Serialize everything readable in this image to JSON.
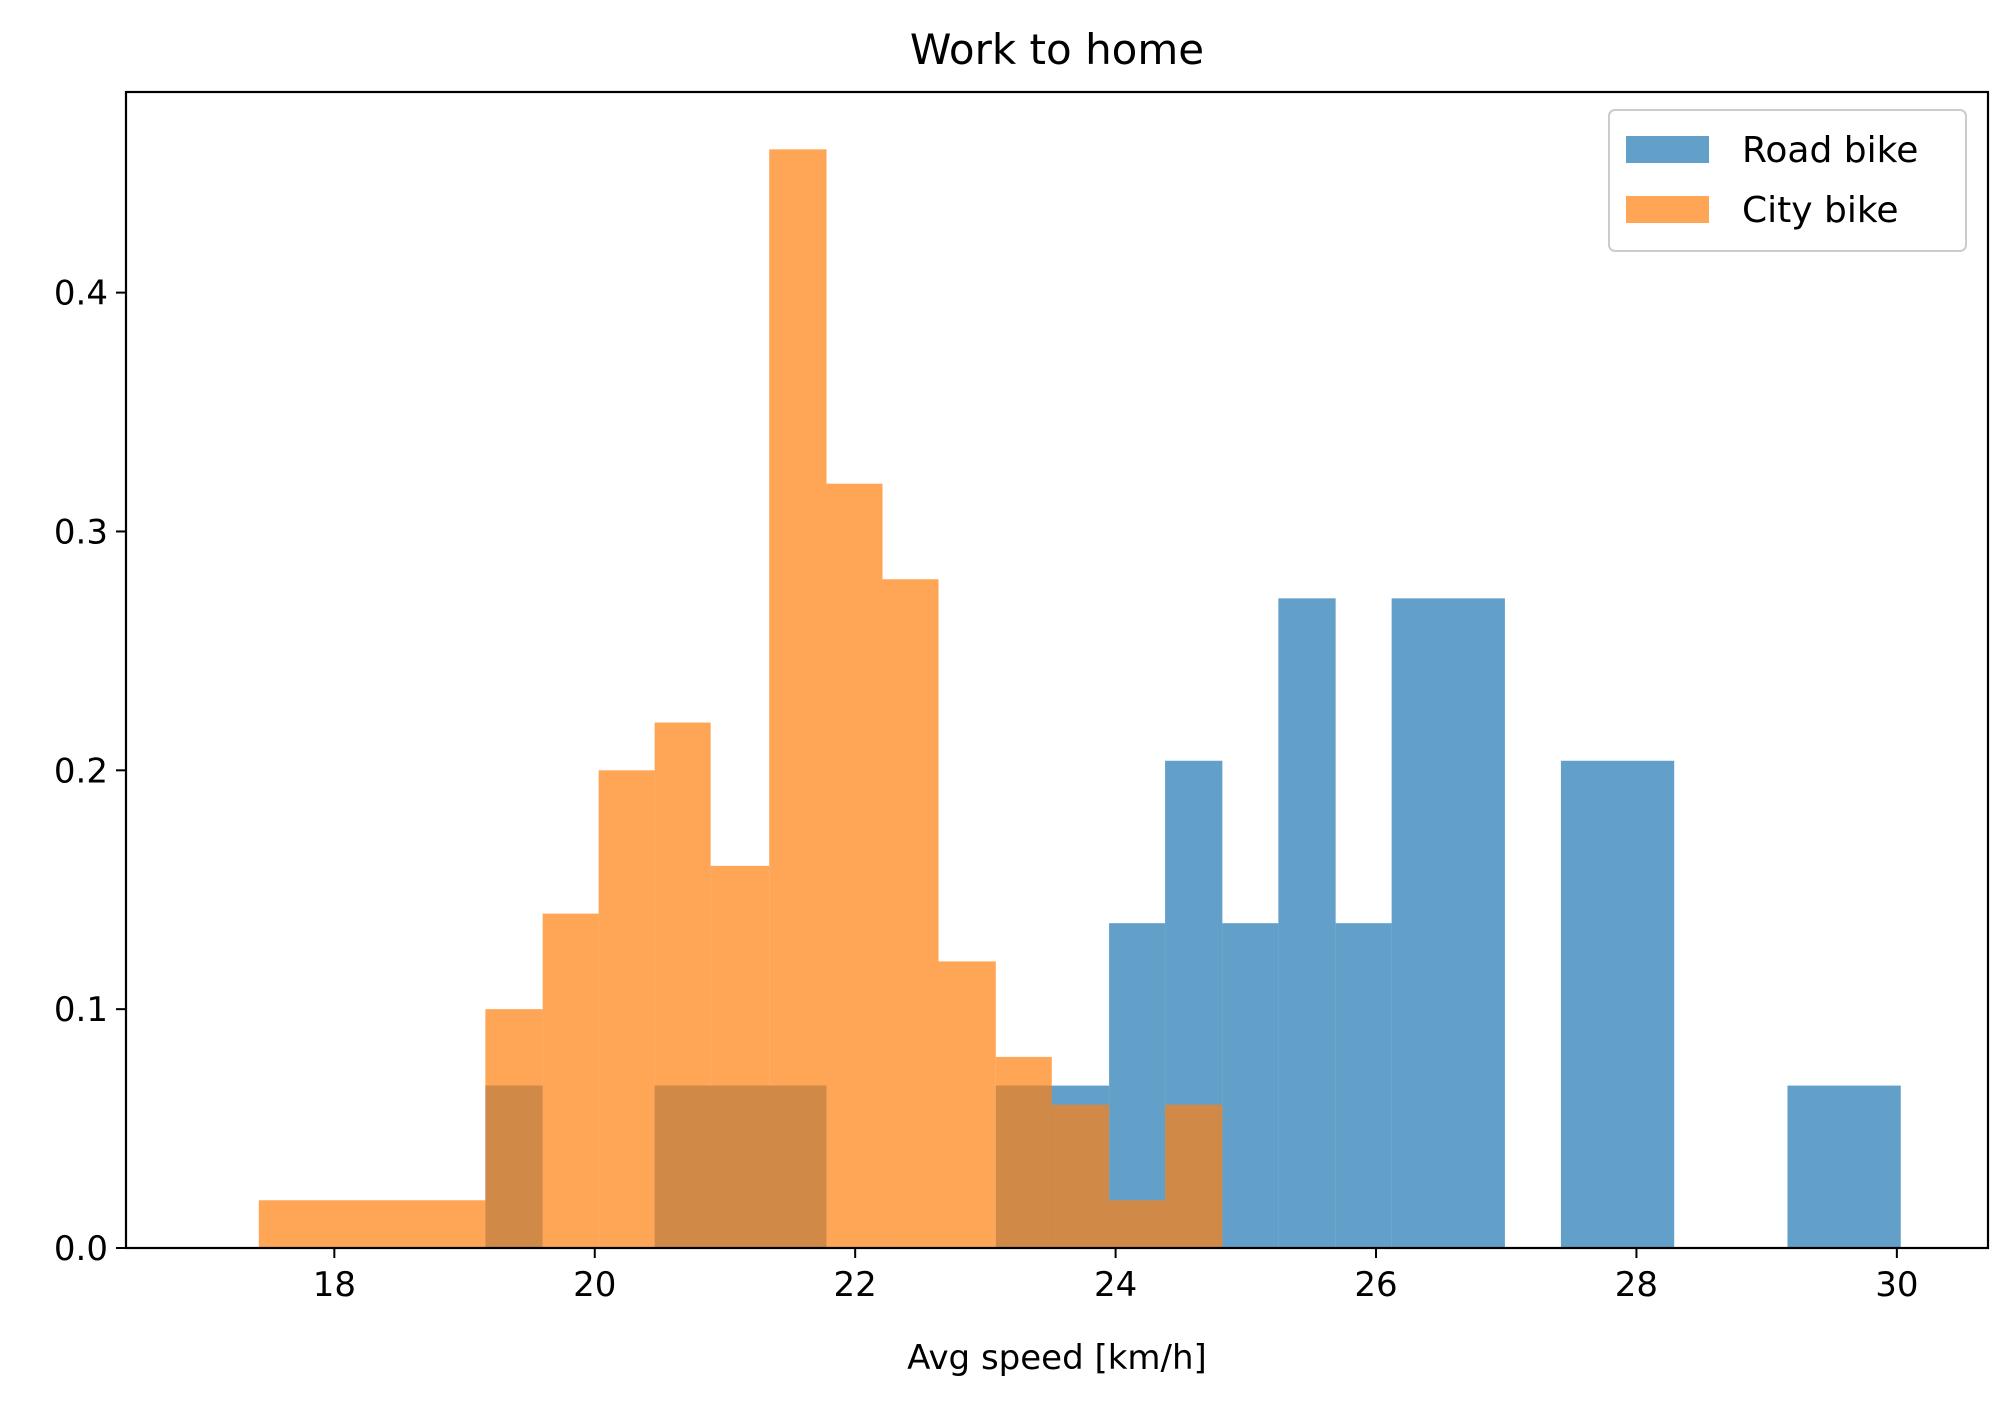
{
  "chart_data": {
    "type": "histogram",
    "title": "Work to home",
    "xlabel": "Avg speed [km/h]",
    "ylabel": "",
    "xlim": [
      16.4,
      30.7
    ],
    "ylim": [
      0.0,
      0.484
    ],
    "x_ticks": [
      18,
      20,
      22,
      24,
      26,
      28,
      30
    ],
    "y_ticks": [
      0.0,
      0.1,
      0.2,
      0.3,
      0.4
    ],
    "x_tick_labels": [
      "18",
      "20",
      "22",
      "24",
      "26",
      "28",
      "30"
    ],
    "y_tick_labels": [
      "0.0",
      "0.1",
      "0.2",
      "0.3",
      "0.4"
    ],
    "grid": false,
    "legend_position": "top-right",
    "density": true,
    "alpha": 0.7,
    "series": [
      {
        "name": "Road bike",
        "color": "#1f77b4",
        "bins": [
          {
            "x0": 19.16,
            "x1": 19.6,
            "y": 0.068
          },
          {
            "x0": 19.6,
            "x1": 20.46,
            "y": 0.0
          },
          {
            "x0": 20.46,
            "x1": 21.78,
            "y": 0.068
          },
          {
            "x0": 21.78,
            "x1": 23.08,
            "y": 0.0
          },
          {
            "x0": 23.08,
            "x1": 23.95,
            "y": 0.068
          },
          {
            "x0": 23.95,
            "x1": 24.38,
            "y": 0.136
          },
          {
            "x0": 24.38,
            "x1": 24.82,
            "y": 0.204
          },
          {
            "x0": 24.82,
            "x1": 25.25,
            "y": 0.136
          },
          {
            "x0": 25.25,
            "x1": 25.69,
            "y": 0.272
          },
          {
            "x0": 25.69,
            "x1": 26.12,
            "y": 0.136
          },
          {
            "x0": 26.12,
            "x1": 26.99,
            "y": 0.272
          },
          {
            "x0": 26.99,
            "x1": 27.42,
            "y": 0.0
          },
          {
            "x0": 27.42,
            "x1": 28.29,
            "y": 0.204
          },
          {
            "x0": 28.29,
            "x1": 29.16,
            "y": 0.0
          },
          {
            "x0": 29.16,
            "x1": 30.03,
            "y": 0.068
          }
        ]
      },
      {
        "name": "City bike",
        "color": "#ff7f0e",
        "bins": [
          {
            "x0": 17.42,
            "x1": 19.16,
            "y": 0.02
          },
          {
            "x0": 19.16,
            "x1": 19.6,
            "y": 0.1
          },
          {
            "x0": 19.6,
            "x1": 20.03,
            "y": 0.14
          },
          {
            "x0": 20.03,
            "x1": 20.46,
            "y": 0.2
          },
          {
            "x0": 20.46,
            "x1": 20.89,
            "y": 0.22
          },
          {
            "x0": 20.89,
            "x1": 21.34,
            "y": 0.16
          },
          {
            "x0": 21.34,
            "x1": 21.78,
            "y": 0.46
          },
          {
            "x0": 21.78,
            "x1": 22.21,
            "y": 0.32
          },
          {
            "x0": 22.21,
            "x1": 22.64,
            "y": 0.28
          },
          {
            "x0": 22.64,
            "x1": 23.08,
            "y": 0.12
          },
          {
            "x0": 23.08,
            "x1": 23.51,
            "y": 0.08
          },
          {
            "x0": 23.51,
            "x1": 23.95,
            "y": 0.06
          },
          {
            "x0": 23.95,
            "x1": 24.38,
            "y": 0.02
          },
          {
            "x0": 24.38,
            "x1": 24.82,
            "y": 0.06
          }
        ]
      }
    ]
  }
}
